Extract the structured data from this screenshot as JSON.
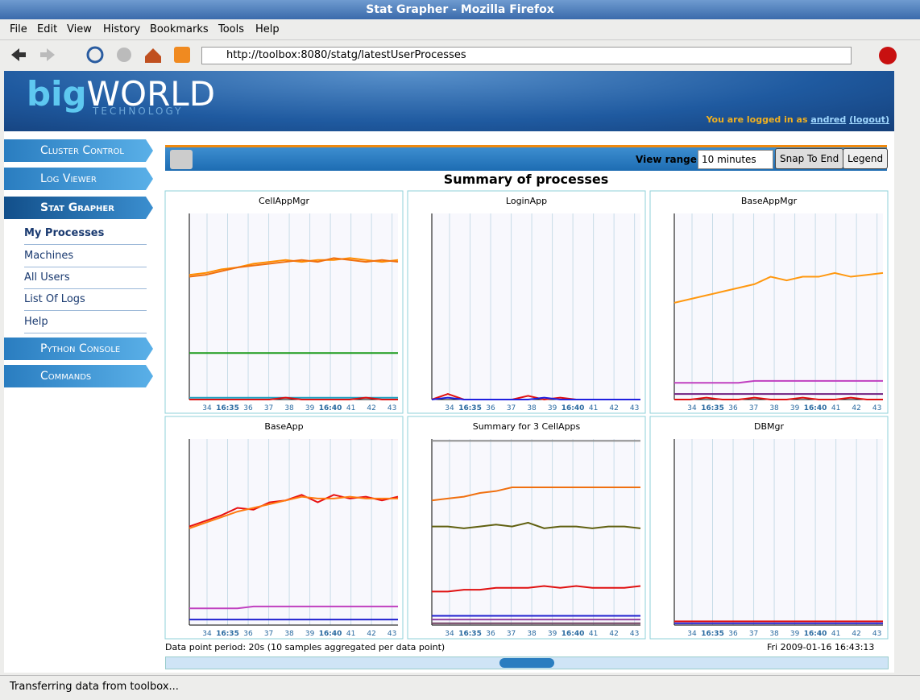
{
  "window": {
    "title": "Stat Grapher - Mozilla Firefox"
  },
  "menu": [
    "File",
    "Edit",
    "View",
    "History",
    "Bookmarks",
    "Tools",
    "Help"
  ],
  "address": "http://toolbox:8080/statg/latestUserProcesses",
  "banner": {
    "logo_a": "big",
    "logo_b": "WORLD",
    "logo_sub": "TECHNOLOGY",
    "login_prefix": "You are logged in as",
    "user": "andred",
    "logout": "(logout)"
  },
  "sections_top": [
    "Cluster Control",
    "Log Viewer",
    "Stat Grapher"
  ],
  "subnav": [
    "My Processes",
    "Machines",
    "All Users",
    "List Of Logs",
    "Help"
  ],
  "sections_bottom": [
    "Python Console",
    "Commands"
  ],
  "toolbar": {
    "view_range_label": "View range:",
    "view_range": "10 minutes",
    "snap": "Snap To End",
    "legend": "Legend"
  },
  "page_title": "Summary of processes",
  "graphs": {
    "ylim": [
      0,
      100
    ],
    "xticks": [
      "34",
      "16:35",
      "36",
      "37",
      "38",
      "39",
      "16:40",
      "41",
      "42",
      "43"
    ],
    "panels": [
      {
        "title": "CellAppMgr",
        "series": [
          {
            "color": "#ff8c00",
            "values": [
              67,
              68,
              70,
              71,
              73,
              74,
              75,
              74,
              75,
              75,
              76,
              75,
              74,
              75
            ]
          },
          {
            "color": "#f07010",
            "values": [
              66,
              67,
              69,
              71,
              72,
              73,
              74,
              75,
              74,
              76,
              75,
              74,
              75,
              74
            ]
          },
          {
            "color": "#1a9a1a",
            "values": [
              25,
              25,
              25,
              25,
              25,
              25,
              25,
              25,
              25,
              25,
              25,
              25,
              25,
              25
            ]
          },
          {
            "color": "#20a0c0",
            "values": [
              1,
              1,
              1,
              1,
              1,
              1,
              1,
              1,
              1,
              1,
              1,
              1,
              1,
              1
            ]
          },
          {
            "color": "#e01010",
            "values": [
              0,
              0,
              0,
              0,
              0,
              0,
              1,
              0,
              0,
              0,
              0,
              1,
              0,
              0
            ]
          }
        ]
      },
      {
        "title": "LoginApp",
        "series": [
          {
            "color": "#e01010",
            "values": [
              0,
              3,
              0,
              0,
              0,
              0,
              2,
              0,
              1,
              0,
              0,
              0,
              0,
              0
            ]
          },
          {
            "color": "#2020e0",
            "values": [
              0,
              1,
              0,
              0,
              0,
              0,
              0,
              1,
              0,
              0,
              0,
              0,
              0,
              0
            ]
          }
        ]
      },
      {
        "title": "BaseAppMgr",
        "series": [
          {
            "color": "#ff9810",
            "values": [
              52,
              54,
              56,
              58,
              60,
              62,
              66,
              64,
              66,
              66,
              68,
              66,
              67,
              68
            ]
          },
          {
            "color": "#c040c0",
            "values": [
              9,
              9,
              9,
              9,
              9,
              10,
              10,
              10,
              10,
              10,
              10,
              10,
              10,
              10
            ]
          },
          {
            "color": "#702080",
            "values": [
              3,
              3,
              3,
              3,
              3,
              3,
              3,
              3,
              3,
              3,
              3,
              3,
              3,
              3
            ]
          },
          {
            "color": "#e01010",
            "values": [
              0,
              0,
              1,
              0,
              0,
              1,
              0,
              0,
              1,
              0,
              0,
              1,
              0,
              0
            ]
          }
        ]
      },
      {
        "title": "BaseApp",
        "series": [
          {
            "color": "#e81010",
            "values": [
              53,
              56,
              59,
              63,
              62,
              66,
              67,
              70,
              66,
              70,
              68,
              69,
              67,
              69
            ]
          },
          {
            "color": "#ff7a10",
            "values": [
              52,
              55,
              58,
              61,
              63,
              65,
              67,
              69,
              68,
              68,
              69,
              68,
              68,
              68
            ]
          },
          {
            "color": "#c040c0",
            "values": [
              9,
              9,
              9,
              9,
              10,
              10,
              10,
              10,
              10,
              10,
              10,
              10,
              10,
              10
            ]
          },
          {
            "color": "#2020d0",
            "values": [
              3,
              3,
              3,
              3,
              3,
              3,
              3,
              3,
              3,
              3,
              3,
              3,
              3,
              3
            ]
          }
        ]
      },
      {
        "title": "Summary for 3 CellApps",
        "series": [
          {
            "color": "#909090",
            "values": [
              99,
              99,
              99,
              99,
              99,
              99,
              99,
              99,
              99,
              99,
              99,
              99,
              99,
              99
            ]
          },
          {
            "color": "#f07010",
            "values": [
              67,
              68,
              69,
              71,
              72,
              74,
              74,
              74,
              74,
              74,
              74,
              74,
              74,
              74
            ]
          },
          {
            "color": "#606010",
            "values": [
              53,
              53,
              52,
              53,
              54,
              53,
              55,
              52,
              53,
              53,
              52,
              53,
              53,
              52
            ]
          },
          {
            "color": "#e01010",
            "values": [
              18,
              18,
              19,
              19,
              20,
              20,
              20,
              21,
              20,
              21,
              20,
              20,
              20,
              21
            ]
          },
          {
            "color": "#2020d0",
            "values": [
              5,
              5,
              5,
              5,
              5,
              5,
              5,
              5,
              5,
              5,
              5,
              5,
              5,
              5
            ]
          },
          {
            "color": "#9040a0",
            "values": [
              3,
              3,
              3,
              3,
              3,
              3,
              3,
              3,
              3,
              3,
              3,
              3,
              3,
              3
            ]
          },
          {
            "color": "#704060",
            "values": [
              1,
              1,
              1,
              1,
              1,
              1,
              1,
              1,
              1,
              1,
              1,
              1,
              1,
              1
            ]
          }
        ]
      },
      {
        "title": "DBMgr",
        "series": [
          {
            "color": "#e01010",
            "values": [
              2,
              2,
              2,
              2,
              2,
              2,
              2,
              2,
              2,
              2,
              2,
              2,
              2,
              2
            ]
          },
          {
            "color": "#2020d0",
            "values": [
              1,
              1,
              1,
              1,
              1,
              1,
              1,
              1,
              1,
              1,
              1,
              1,
              1,
              1
            ]
          }
        ]
      }
    ]
  },
  "footer": {
    "period": "Data point period: 20s (10 samples aggregated per data point)",
    "timestamp": "Fri 2009-01-16 16:43:13"
  },
  "status": "Transferring data from toolbox..."
}
